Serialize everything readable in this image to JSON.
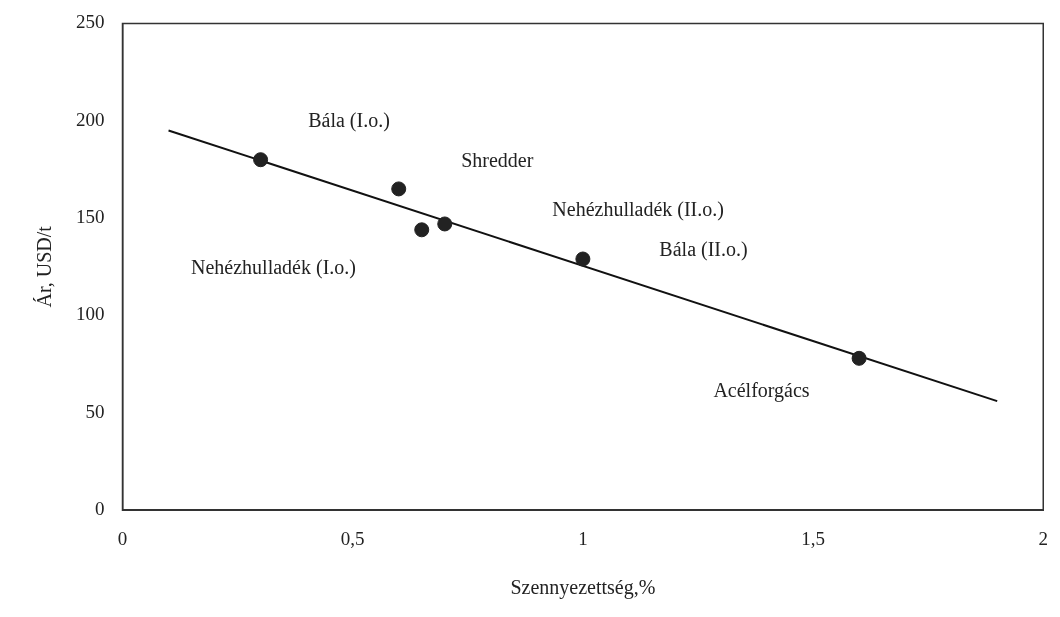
{
  "chart_data": {
    "type": "scatter",
    "xlabel": "Szennyezettség,%",
    "ylabel": "Ár, USD/t",
    "xlim": [
      0,
      2
    ],
    "xticks": [
      0,
      {
        "value": 0.5,
        "label": "0,5"
      },
      1,
      {
        "value": 1.5,
        "label": "1,5"
      },
      2
    ],
    "ylim": [
      0,
      250
    ],
    "yticks": [
      0,
      50,
      100,
      150,
      200,
      250
    ],
    "grid": false,
    "legend": false,
    "marker": "circle",
    "series": [
      {
        "color": "#222222",
        "x": [
          0.3,
          0.6,
          0.65,
          0.7,
          1.0,
          1.6
        ],
        "values": [
          180,
          165,
          144,
          147,
          129,
          78
        ]
      },
      {
        "type": "line",
        "color": "#111111",
        "marker": "none",
        "x": [
          0.1,
          1.9
        ],
        "values": [
          195,
          56
        ]
      }
    ],
    "annotations": [
      "Bála (I.o.)",
      "Shredder",
      "Nehézhulladék (II.o.)",
      "Bála (II.o.)",
      "Nehézhulladék (I.o.)",
      "Acélforgács"
    ]
  }
}
